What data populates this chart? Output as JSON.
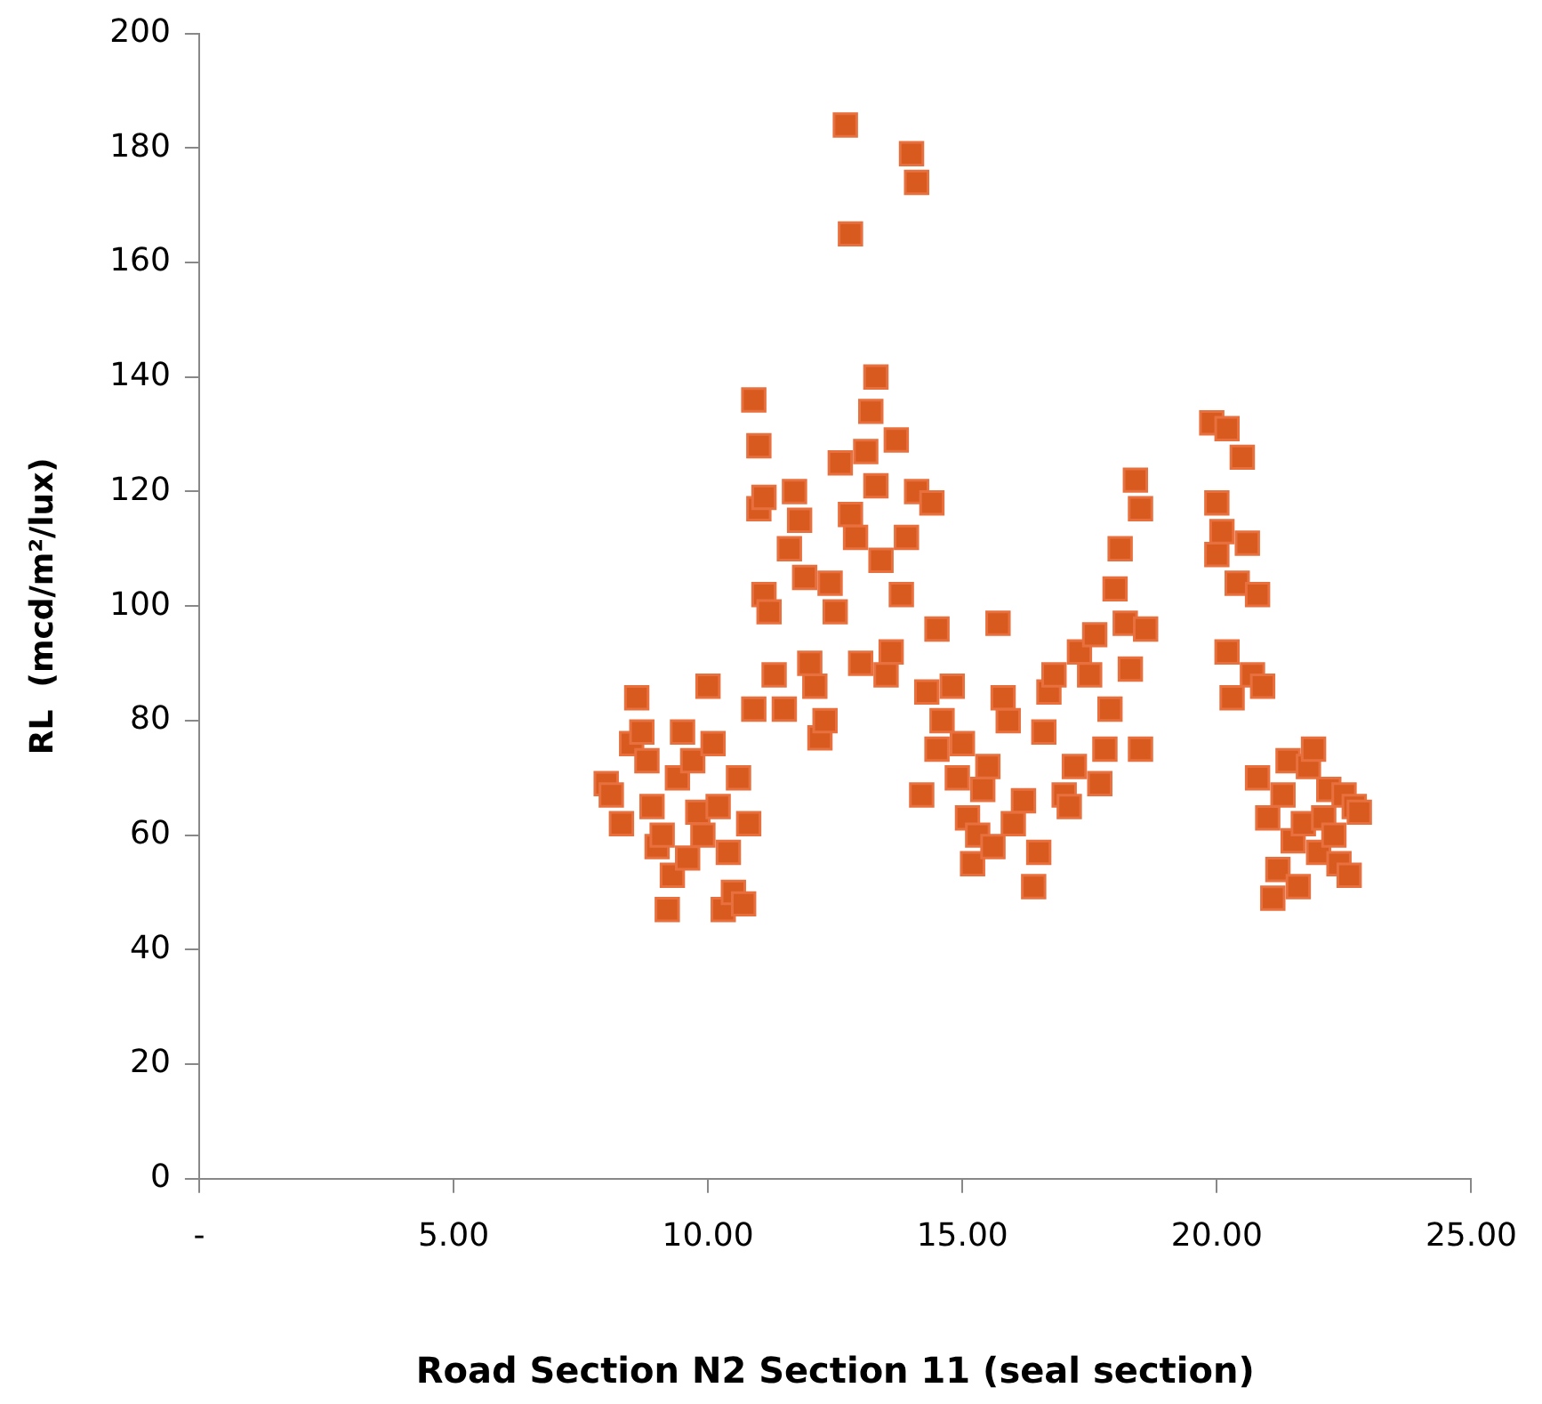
{
  "chart_data": {
    "type": "scatter",
    "xlabel": "Road Section N2 Section 11 (seal section)",
    "ylabel": "RL  (mcd/m²/lux)",
    "marker": "square",
    "grid": false,
    "legend": false,
    "xlim": [
      0,
      25
    ],
    "xticks": [
      {
        "value": 0,
        "label": "-"
      },
      {
        "value": 5,
        "label": "5.00"
      },
      {
        "value": 10,
        "label": "10.00"
      },
      {
        "value": 15,
        "label": "15.00"
      },
      {
        "value": 20,
        "label": "20.00"
      },
      {
        "value": 25,
        "label": "25.00"
      }
    ],
    "ylim": [
      0,
      200
    ],
    "yticks": [
      0,
      20,
      40,
      60,
      80,
      100,
      120,
      140,
      160,
      180,
      200
    ],
    "series": [
      {
        "color": "#d95a1e",
        "x": [
          8.0,
          8.1,
          8.3,
          8.5,
          8.6,
          8.7,
          8.8,
          8.9,
          9.0,
          9.1,
          9.2,
          9.3,
          9.4,
          9.5,
          9.6,
          9.7,
          9.8,
          9.9,
          10.0,
          10.1,
          10.2,
          10.3,
          10.4,
          10.5,
          10.6,
          10.7,
          10.8,
          10.9,
          10.9,
          11.0,
          11.0,
          11.1,
          11.1,
          11.2,
          11.3,
          11.5,
          11.6,
          11.7,
          11.8,
          11.9,
          12.0,
          12.1,
          12.2,
          12.3,
          12.4,
          12.5,
          12.6,
          12.7,
          12.8,
          12.8,
          12.9,
          13.0,
          13.1,
          13.2,
          13.3,
          13.3,
          13.4,
          13.5,
          13.6,
          13.7,
          13.8,
          13.9,
          14.0,
          14.1,
          14.1,
          14.2,
          14.3,
          14.4,
          14.5,
          14.5,
          14.6,
          14.8,
          14.9,
          15.0,
          15.1,
          15.2,
          15.3,
          15.4,
          15.5,
          15.6,
          15.7,
          15.8,
          15.9,
          16.0,
          16.2,
          16.4,
          16.5,
          16.6,
          16.7,
          16.8,
          17.0,
          17.1,
          17.2,
          17.3,
          17.5,
          17.6,
          17.7,
          17.8,
          17.9,
          18.0,
          18.1,
          18.2,
          18.3,
          18.4,
          18.5,
          18.5,
          18.6,
          19.9,
          20.0,
          20.0,
          20.1,
          20.2,
          20.2,
          20.3,
          20.4,
          20.5,
          20.6,
          20.7,
          20.8,
          20.9,
          20.8,
          21.0,
          21.1,
          21.2,
          21.3,
          21.4,
          21.5,
          21.6,
          21.7,
          21.8,
          21.9,
          22.0,
          22.1,
          22.2,
          22.3,
          22.4,
          22.5,
          22.6,
          22.7,
          22.8
        ],
        "values": [
          69,
          67,
          62,
          76,
          84,
          78,
          73,
          65,
          58,
          60,
          47,
          53,
          70,
          78,
          56,
          73,
          64,
          60,
          86,
          76,
          65,
          47,
          57,
          50,
          70,
          48,
          62,
          82,
          136,
          128,
          117,
          119,
          102,
          99,
          88,
          82,
          110,
          120,
          115,
          105,
          90,
          86,
          77,
          80,
          104,
          99,
          125,
          184,
          165,
          116,
          112,
          90,
          127,
          134,
          140,
          121,
          108,
          88,
          92,
          129,
          102,
          112,
          179,
          174,
          120,
          67,
          85,
          118,
          96,
          75,
          80,
          86,
          70,
          76,
          63,
          55,
          60,
          68,
          72,
          58,
          97,
          84,
          80,
          62,
          66,
          51,
          57,
          78,
          85,
          88,
          67,
          65,
          72,
          92,
          88,
          95,
          69,
          75,
          82,
          103,
          110,
          97,
          89,
          122,
          117,
          75,
          96,
          132,
          118,
          109,
          113,
          131,
          92,
          84,
          104,
          126,
          111,
          88,
          102,
          86,
          70,
          63,
          49,
          54,
          67,
          73,
          59,
          51,
          62,
          72,
          75,
          57,
          63,
          68,
          60,
          55,
          67,
          53,
          65,
          64
        ]
      }
    ]
  }
}
